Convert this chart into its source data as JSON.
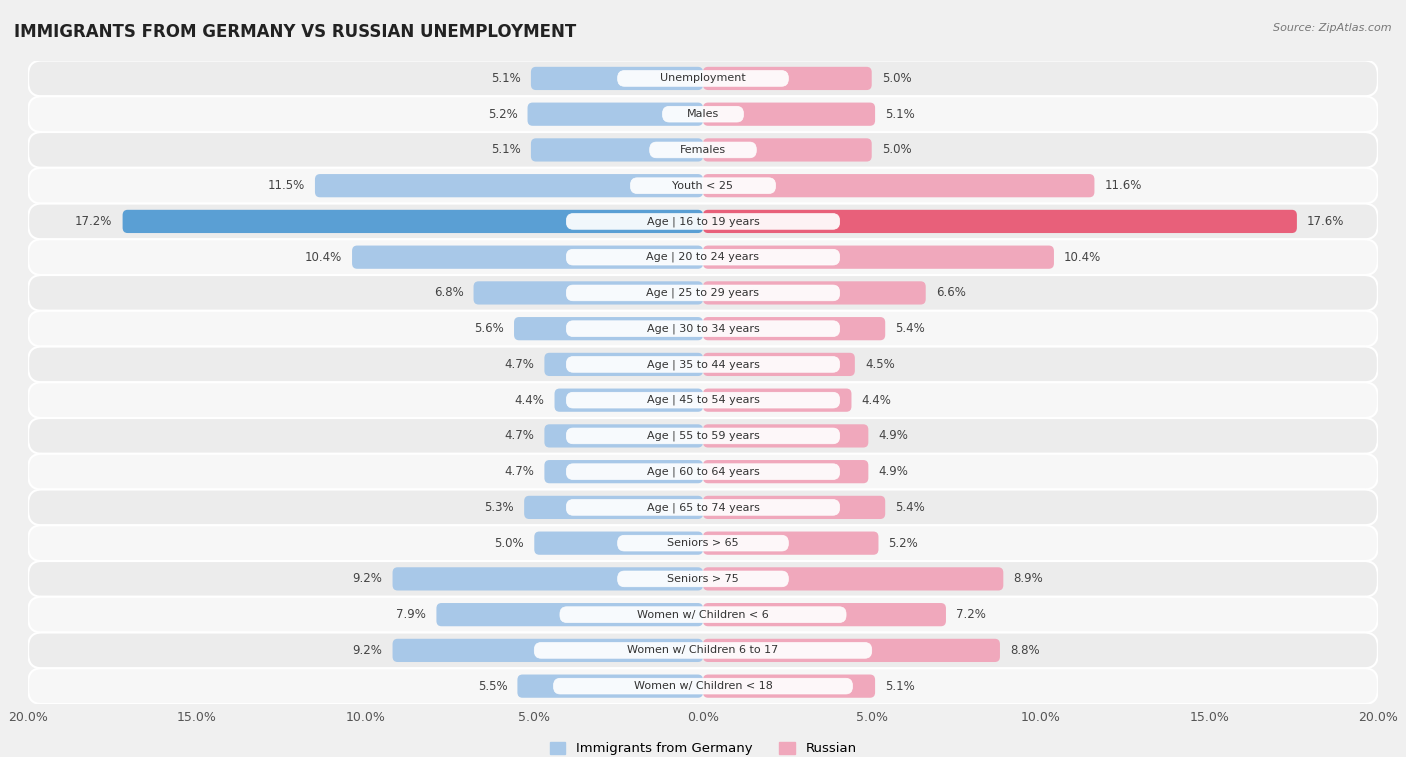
{
  "title": "IMMIGRANTS FROM GERMANY VS RUSSIAN UNEMPLOYMENT",
  "source": "Source: ZipAtlas.com",
  "categories": [
    "Unemployment",
    "Males",
    "Females",
    "Youth < 25",
    "Age | 16 to 19 years",
    "Age | 20 to 24 years",
    "Age | 25 to 29 years",
    "Age | 30 to 34 years",
    "Age | 35 to 44 years",
    "Age | 45 to 54 years",
    "Age | 55 to 59 years",
    "Age | 60 to 64 years",
    "Age | 65 to 74 years",
    "Seniors > 65",
    "Seniors > 75",
    "Women w/ Children < 6",
    "Women w/ Children 6 to 17",
    "Women w/ Children < 18"
  ],
  "germany_values": [
    5.1,
    5.2,
    5.1,
    11.5,
    17.2,
    10.4,
    6.8,
    5.6,
    4.7,
    4.4,
    4.7,
    4.7,
    5.3,
    5.0,
    9.2,
    7.9,
    9.2,
    5.5
  ],
  "russia_values": [
    5.0,
    5.1,
    5.0,
    11.6,
    17.6,
    10.4,
    6.6,
    5.4,
    4.5,
    4.4,
    4.9,
    4.9,
    5.4,
    5.2,
    8.9,
    7.2,
    8.8,
    5.1
  ],
  "germany_color": "#a8c8e8",
  "russia_color": "#f0a8bc",
  "germany_highlight_color": "#5a9fd4",
  "russia_highlight_color": "#e8607a",
  "row_color_even": "#ececec",
  "row_color_odd": "#f7f7f7",
  "background_color": "#f0f0f0",
  "xlim": 20.0,
  "legend_germany": "Immigrants from Germany",
  "legend_russia": "Russian",
  "bar_height": 0.65
}
